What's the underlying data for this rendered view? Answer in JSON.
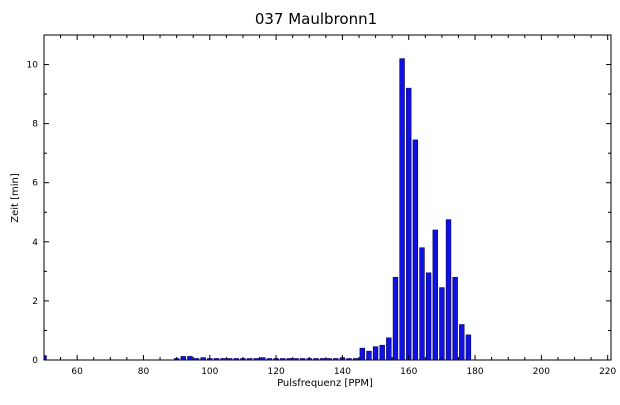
{
  "chart_data": {
    "type": "bar",
    "title": "037 Maulbronn1",
    "xlabel": "Pulsfrequenz [PPM]",
    "ylabel": "Zeit [min]",
    "xlim": [
      50,
      221
    ],
    "ylim": [
      0,
      11
    ],
    "x_ticks": [
      60,
      80,
      100,
      120,
      140,
      160,
      180,
      200,
      220
    ],
    "y_ticks": [
      0,
      2,
      4,
      6,
      8,
      10
    ],
    "grid": false,
    "bar_color": "#1010e0",
    "bar_edge_color": "#00006a",
    "x": [
      50,
      90,
      92,
      94,
      96,
      98,
      100,
      102,
      104,
      106,
      108,
      110,
      112,
      114,
      116,
      118,
      120,
      122,
      124,
      126,
      128,
      130,
      132,
      134,
      136,
      138,
      140,
      142,
      144,
      146,
      148,
      150,
      152,
      154,
      156,
      158,
      160,
      162,
      164,
      166,
      168,
      170,
      172,
      174,
      176,
      178
    ],
    "values": [
      0.15,
      0.05,
      0.12,
      0.12,
      0.05,
      0.08,
      0.05,
      0.03,
      0.03,
      0.03,
      0.03,
      0.03,
      0.05,
      0.05,
      0.08,
      0.03,
      0.03,
      0.03,
      0.05,
      0.03,
      0.05,
      0.05,
      0.05,
      0.05,
      0.05,
      0.05,
      0.08,
      0.05,
      0.05,
      0.4,
      0.3,
      0.45,
      0.5,
      0.75,
      2.8,
      10.2,
      9.2,
      7.45,
      3.8,
      2.95,
      4.4,
      2.45,
      4.75,
      2.8,
      1.2,
      0.85
    ]
  }
}
